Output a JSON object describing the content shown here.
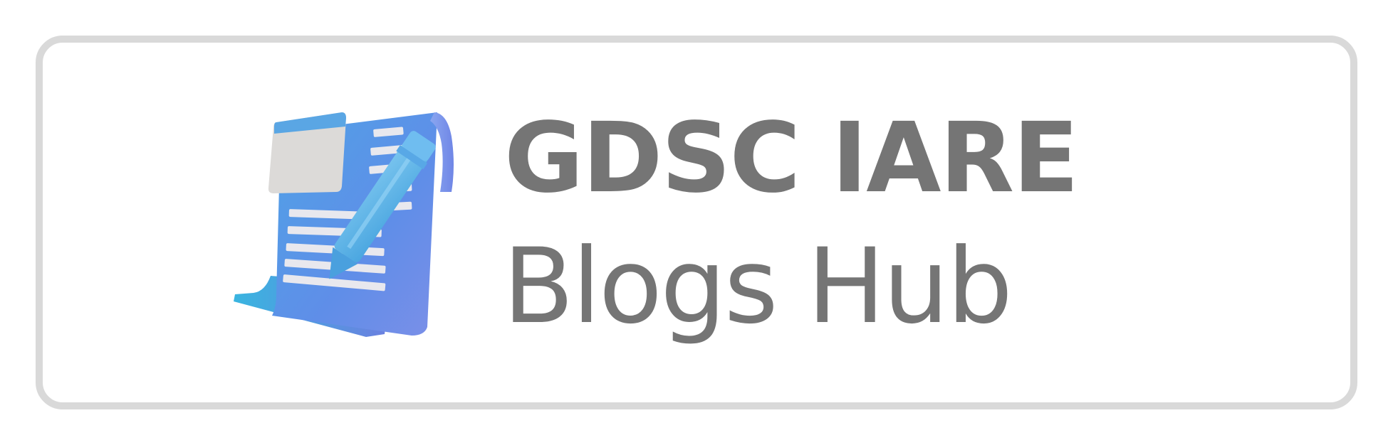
{
  "badge": {
    "title": "GDSC IARE",
    "subtitle": "Blogs Hub",
    "icon": "blog-pen-document-icon"
  },
  "colors": {
    "text": "#757575",
    "border": "#d9d9d9",
    "background": "#ffffff",
    "paper_blue": "#5c8fe6",
    "paper_light_blue": "#7aa6ee",
    "pencil": "#5fb6e6",
    "note_card": "#dcdcdc"
  }
}
